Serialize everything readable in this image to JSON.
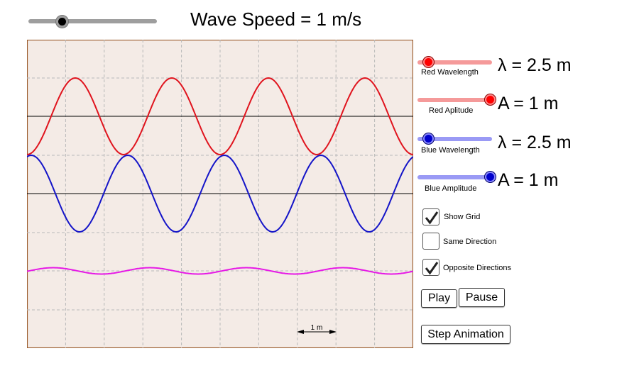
{
  "colors": {
    "red_wave": "#e0141e",
    "blue_wave": "#1414c8",
    "sum_wave": "#e619e6",
    "plot_background": "#f4ebe6",
    "plot_border": "#9a5a2a",
    "grid": "#b9b9b9"
  },
  "speed": {
    "label": "Wave Speed = 1 m/s",
    "value": 1
  },
  "controls": {
    "red_wavelength": {
      "label": "Red Wavelength",
      "value_text": "λ = 2.5 m",
      "value": 2.5
    },
    "red_amplitude": {
      "label": "Red Aplitude",
      "value_text": "A = 1 m",
      "value": 1
    },
    "blue_wavelength": {
      "label": "Blue Wavelength",
      "value_text": "λ = 2.5 m",
      "value": 2.5
    },
    "blue_amplitude": {
      "label": "Blue Amplitude",
      "value_text": "A = 1 m",
      "value": 1
    }
  },
  "checkboxes": {
    "show_grid": {
      "label": "Show Grid",
      "checked": true
    },
    "same_direction": {
      "label": "Same Direction",
      "checked": false
    },
    "opposite_directions": {
      "label": "Opposite Directions",
      "checked": true
    }
  },
  "buttons": {
    "play": "Play",
    "pause": "Pause",
    "step": "Step Animation"
  },
  "plot": {
    "scale_label": "1 m"
  }
}
